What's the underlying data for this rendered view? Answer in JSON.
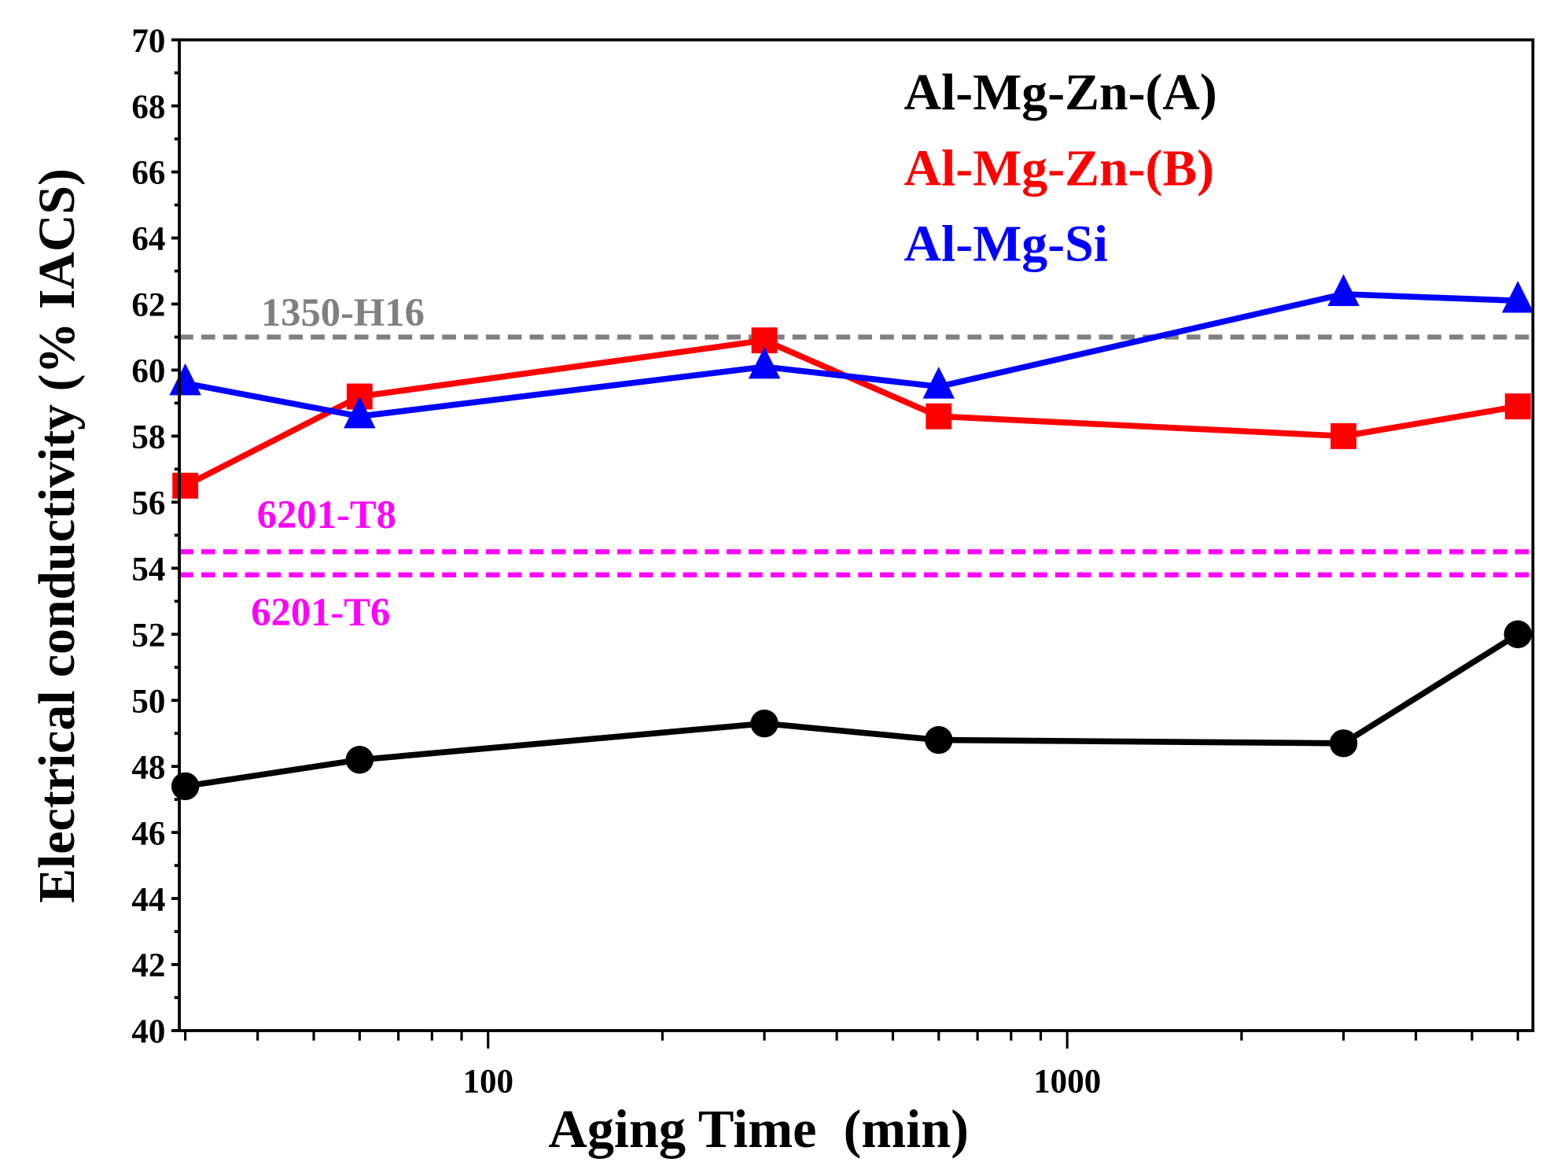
{
  "chart_data": {
    "type": "line",
    "xlabel": "Aging Time  (min)",
    "ylabel": "Electrical conductivity (% IACS)",
    "xscale": "log",
    "xlim": [
      29.3,
      6370
    ],
    "ylim": [
      40,
      70
    ],
    "x_ticks": [
      100,
      1000
    ],
    "x_tick_labels": [
      "100",
      "1000"
    ],
    "y_ticks": [
      40,
      42,
      44,
      46,
      48,
      50,
      52,
      54,
      56,
      58,
      60,
      62,
      64,
      66,
      68,
      70
    ],
    "y_tick_labels": [
      "40",
      "42",
      "44",
      "46",
      "48",
      "50",
      "52",
      "54",
      "56",
      "58",
      "60",
      "62",
      "64",
      "66",
      "68",
      "70"
    ],
    "grid": false,
    "legend_position": "top-right",
    "x": [
      30,
      60,
      300,
      600,
      3000,
      6000
    ],
    "series": [
      {
        "name": "Al-Mg-Zn-(A)",
        "color": "#000000",
        "marker": "circle",
        "values": [
          47.4,
          48.2,
          49.3,
          48.8,
          48.7,
          52.0
        ]
      },
      {
        "name": "Al-Mg-Zn-(B)",
        "color": "#ff0000",
        "marker": "square",
        "values": [
          56.5,
          59.2,
          60.9,
          58.6,
          58.0,
          58.9
        ]
      },
      {
        "name": "Al-Mg-Si",
        "color": "#0000ff",
        "marker": "triangle",
        "values": [
          59.6,
          58.6,
          60.1,
          59.5,
          62.3,
          62.1
        ]
      }
    ],
    "reference_lines": [
      {
        "label": "1350-H16",
        "value": 61.0,
        "color": "#808080"
      },
      {
        "label": "6201-T8",
        "value": 54.5,
        "color": "#ff00ff"
      },
      {
        "label": "6201-T6",
        "value": 53.8,
        "color": "#ff00ff"
      }
    ]
  }
}
